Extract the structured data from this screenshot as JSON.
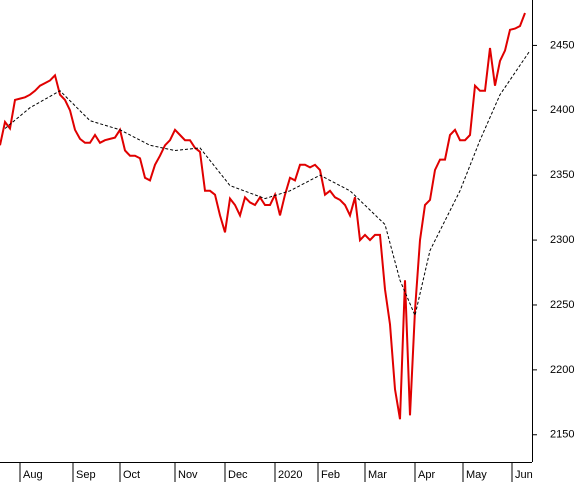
{
  "chart_data": {
    "type": "line",
    "xlim": [
      0,
      106.4
    ],
    "xticks": [
      {
        "value": 4,
        "label": "Aug"
      },
      {
        "value": 14.6,
        "label": "Sep"
      },
      {
        "value": 24,
        "label": "Oct"
      },
      {
        "value": 35,
        "label": "Nov"
      },
      {
        "value": 45,
        "label": "Dec"
      },
      {
        "value": 55,
        "label": "2020"
      },
      {
        "value": 63.6,
        "label": "Feb"
      },
      {
        "value": 73,
        "label": "Mar"
      },
      {
        "value": 83,
        "label": "Apr"
      },
      {
        "value": 92.6,
        "label": "May"
      },
      {
        "value": 102.4,
        "label": "Jun"
      }
    ],
    "ylim": [
      2129,
      2485
    ],
    "yticks": [
      2150,
      2200,
      2250,
      2300,
      2350,
      2400,
      2450
    ],
    "series": [
      {
        "color": "#e00000",
        "dash": false,
        "x": [
          0,
          1,
          2,
          3,
          4,
          5,
          6,
          7,
          8,
          9,
          10,
          11,
          12,
          13,
          14,
          15,
          16,
          17,
          18,
          19,
          20,
          21,
          22,
          23,
          24,
          25,
          26,
          27,
          28,
          29,
          30,
          31,
          32,
          33,
          34,
          35,
          36,
          37,
          38,
          39,
          40,
          41,
          42,
          43,
          44,
          45,
          46,
          47,
          48,
          49,
          50,
          51,
          52,
          53,
          54,
          55,
          56,
          57,
          58,
          59,
          60,
          61,
          62,
          63,
          64,
          65,
          66,
          67,
          68,
          69,
          70,
          71,
          72,
          73,
          74,
          75,
          76,
          77,
          78,
          79,
          80,
          81,
          82,
          83,
          84,
          85,
          86,
          87,
          88,
          89,
          90,
          91,
          92,
          93,
          94,
          95,
          96,
          97,
          98,
          99,
          100,
          101,
          102,
          103,
          104,
          105
        ],
        "values": [
          2373,
          2391,
          2386,
          2408,
          2409,
          2410,
          2412,
          2415,
          2419,
          2421,
          2423,
          2427,
          2412,
          2408,
          2400,
          2385,
          2378,
          2375,
          2375,
          2381,
          2375,
          2377,
          2378,
          2379,
          2385,
          2369,
          2365,
          2365,
          2363,
          2348,
          2346,
          2358,
          2365,
          2373,
          2377,
          2385,
          2381,
          2377,
          2377,
          2371,
          2368,
          2338,
          2338,
          2335,
          2319,
          2306,
          2332,
          2327,
          2319,
          2333,
          2329,
          2327,
          2333,
          2327,
          2327,
          2335,
          2319,
          2335,
          2348,
          2346,
          2358,
          2358,
          2356,
          2358,
          2354,
          2335,
          2338,
          2333,
          2331,
          2327,
          2319,
          2333,
          2300,
          2304,
          2300,
          2304,
          2304,
          2262,
          2235,
          2185,
          2162,
          2269,
          2165,
          2246,
          2300,
          2327,
          2331,
          2354,
          2362,
          2362,
          2381,
          2385,
          2377,
          2377,
          2381,
          2419,
          2415,
          2415,
          2448,
          2419,
          2438,
          2446,
          2462,
          2463,
          2465,
          2475
        ]
      },
      {
        "color": "#000000",
        "dash": true,
        "x": [
          1,
          6,
          12,
          18,
          24,
          30,
          35,
          40,
          46,
          53,
          58,
          64,
          70,
          77,
          80,
          83,
          86,
          92,
          96,
          100,
          106
        ],
        "values": [
          2386,
          2402,
          2415,
          2392,
          2385,
          2373,
          2369,
          2371,
          2342,
          2332,
          2338,
          2350,
          2338,
          2312,
          2269,
          2242,
          2292,
          2338,
          2377,
          2412,
          2446
        ]
      }
    ]
  }
}
